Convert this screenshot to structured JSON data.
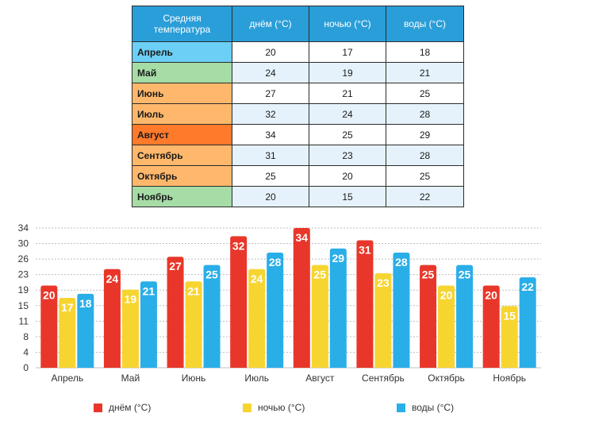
{
  "table": {
    "header": [
      "Средняя температура",
      "днём (°C)",
      "ночью (°C)",
      "воды (°C)"
    ],
    "rows": [
      {
        "month": "Апрель",
        "color": "#6ccff6",
        "day": "20",
        "night": "17",
        "water": "18"
      },
      {
        "month": "Май",
        "color": "#a6dca6",
        "day": "24",
        "night": "19",
        "water": "21"
      },
      {
        "month": "Июнь",
        "color": "#ffb86b",
        "day": "27",
        "night": "21",
        "water": "25"
      },
      {
        "month": "Июль",
        "color": "#ffb86b",
        "day": "32",
        "night": "24",
        "water": "28"
      },
      {
        "month": "Август",
        "color": "#ff7a2a",
        "day": "34",
        "night": "25",
        "water": "29"
      },
      {
        "month": "Сентябрь",
        "color": "#ffb86b",
        "day": "31",
        "night": "23",
        "water": "28"
      },
      {
        "month": "Октябрь",
        "color": "#ffb86b",
        "day": "25",
        "night": "20",
        "water": "25"
      },
      {
        "month": "Ноябрь",
        "color": "#a6dca6",
        "day": "20",
        "night": "15",
        "water": "22"
      }
    ]
  },
  "chart_data": {
    "type": "bar",
    "categories": [
      "Апрель",
      "Май",
      "Июнь",
      "Июль",
      "Август",
      "Сентябрь",
      "Октябрь",
      "Ноябрь"
    ],
    "series": [
      {
        "name": "днём (°C)",
        "color": "#e8372a",
        "values": [
          20,
          24,
          27,
          32,
          34,
          31,
          25,
          20
        ]
      },
      {
        "name": "ночью (°C)",
        "color": "#f7d531",
        "values": [
          17,
          19,
          21,
          24,
          25,
          23,
          20,
          15
        ]
      },
      {
        "name": "воды (°C)",
        "color": "#2aaee8",
        "values": [
          18,
          21,
          25,
          28,
          29,
          28,
          25,
          22
        ]
      }
    ],
    "y_ticks": [
      "0",
      "4",
      "8",
      "11",
      "15",
      "19",
      "23",
      "26",
      "30",
      "34"
    ],
    "ylim": [
      0,
      34
    ],
    "grid": "dashed horizontal",
    "legend_position": "bottom"
  }
}
